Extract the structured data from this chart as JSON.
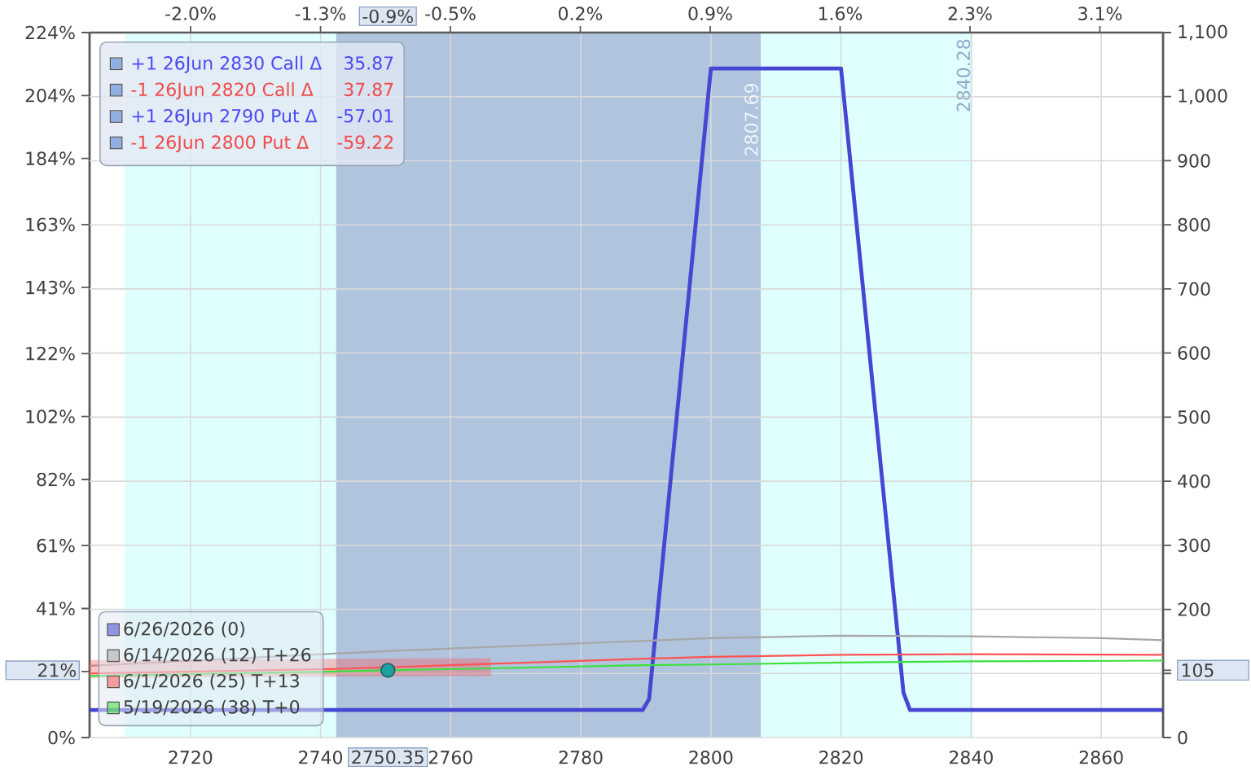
{
  "chart_data": {
    "type": "line",
    "xlim": [
      2704.5,
      2869.5
    ],
    "xticks": [
      2720,
      2740,
      2760,
      2780,
      2800,
      2820,
      2840,
      2860
    ],
    "x2lim": [
      -2.54,
      3.41
    ],
    "x2ticks": [
      {
        "value": -1.98,
        "label": "-2.0%"
      },
      {
        "value": -1.26,
        "label": "-1.3%"
      },
      {
        "value": -0.54,
        "label": "-0.5%"
      },
      {
        "value": 0.18,
        "label": "0.2%"
      },
      {
        "value": 0.9,
        "label": "0.9%"
      },
      {
        "value": 1.62,
        "label": "1.6%"
      },
      {
        "value": 2.34,
        "label": "2.3%"
      },
      {
        "value": 3.06,
        "label": "3.1%"
      }
    ],
    "ylim": [
      0,
      224
    ],
    "yticks": [
      {
        "value": 0,
        "label": "0%"
      },
      {
        "value": 21,
        "label": null
      },
      {
        "value": 41,
        "label": "41%"
      },
      {
        "value": 61,
        "label": "61%"
      },
      {
        "value": 82,
        "label": "82%"
      },
      {
        "value": 102,
        "label": "102%"
      },
      {
        "value": 122,
        "label": "122%"
      },
      {
        "value": 143,
        "label": "143%"
      },
      {
        "value": 163,
        "label": "163%"
      },
      {
        "value": 184,
        "label": "184%"
      },
      {
        "value": 204,
        "label": "204%"
      },
      {
        "value": 224,
        "label": "224%"
      }
    ],
    "y2lim": [
      0,
      1100
    ],
    "y2ticks": [
      0,
      {
        "value": 100,
        "label": null
      },
      105,
      200,
      300,
      400,
      500,
      600,
      700,
      800,
      900,
      {
        "value": 1000,
        "label": "1,000"
      },
      {
        "value": 1100,
        "label": "1,100"
      }
    ],
    "grid": true,
    "legend": "bottom left",
    "series": [
      {
        "name": "6/26/2026 (0)",
        "color": "#4646d2",
        "axis": "y2",
        "x": [
          2704.5,
          2789.5,
          2790.5,
          2800,
          2820,
          2829.6,
          2830.6,
          2869.5
        ],
        "values": [
          43,
          43,
          60,
          1044,
          1044,
          70,
          43,
          43
        ]
      },
      {
        "name": "6/14/2026 (12) T+26",
        "color": "#a6a6a6",
        "axis": "y2",
        "x": [
          2704.5,
          2742,
          2760,
          2780,
          2800,
          2820,
          2840,
          2860,
          2869.5
        ],
        "values": [
          112,
          131,
          139,
          147,
          155,
          159,
          158,
          155,
          152
        ]
      },
      {
        "name": "6/1/2026 (25) T+13",
        "color": "#ff5252",
        "axis": "y2",
        "x": [
          2704.5,
          2742,
          2766.2,
          2790,
          2800,
          2820,
          2840,
          2869.5
        ],
        "values": [
          100,
          107,
          115,
          123,
          126,
          129,
          130,
          129
        ],
        "lower": [
          93,
          95,
          96,
          null,
          null,
          null,
          null,
          null
        ],
        "upper": [
          121,
          123,
          124,
          null,
          null,
          null,
          null,
          null
        ]
      },
      {
        "name": "5/19/2026 (38) T+0",
        "color": "#3ce03c",
        "axis": "y2",
        "x": [
          2704.5,
          2742,
          2750.35,
          2766.2,
          2790,
          2800,
          2820,
          2840,
          2869.5
        ],
        "values": [
          96,
          103,
          105,
          108,
          113,
          114,
          117,
          119,
          120
        ]
      },
      {
        "type": "scatter",
        "color": "#1fa0a0",
        "axis": "y2",
        "marker": "circle",
        "x": [
          2750.35
        ],
        "values": [
          105
        ]
      }
    ],
    "bands": [
      {
        "axis": "x",
        "from": 2709.9,
        "to": 2742.4,
        "color": "#e0ffff"
      },
      {
        "axis": "x",
        "from": 2742.4,
        "to": 2807.69,
        "color": "#b0c4de"
      },
      {
        "axis": "x",
        "from": 2807.69,
        "to": 2840.28,
        "color": "#e0ffff"
      }
    ],
    "annotations": [
      "+1 26Jun 2830 Call Δ",
      "35.87",
      "-1 26Jun 2820 Call Δ",
      "37.87",
      "+1 26Jun 2790 Put Δ",
      "-57.01",
      "-1 26Jun 2800 Put Δ",
      "-59.22",
      {
        "text": "2807.69",
        "x": 2807.69,
        "y": 209
      },
      {
        "text": "2840.28",
        "x": 2840.28,
        "y": 223
      },
      {
        "text": "2750.35",
        "x": 2750.35,
        "y": 0
      },
      {
        "text": "-0.9%",
        "x": 2750.35,
        "y": 224
      },
      {
        "text": "21%",
        "x": 2704.5,
        "y": 21.4
      }
    ]
  }
}
